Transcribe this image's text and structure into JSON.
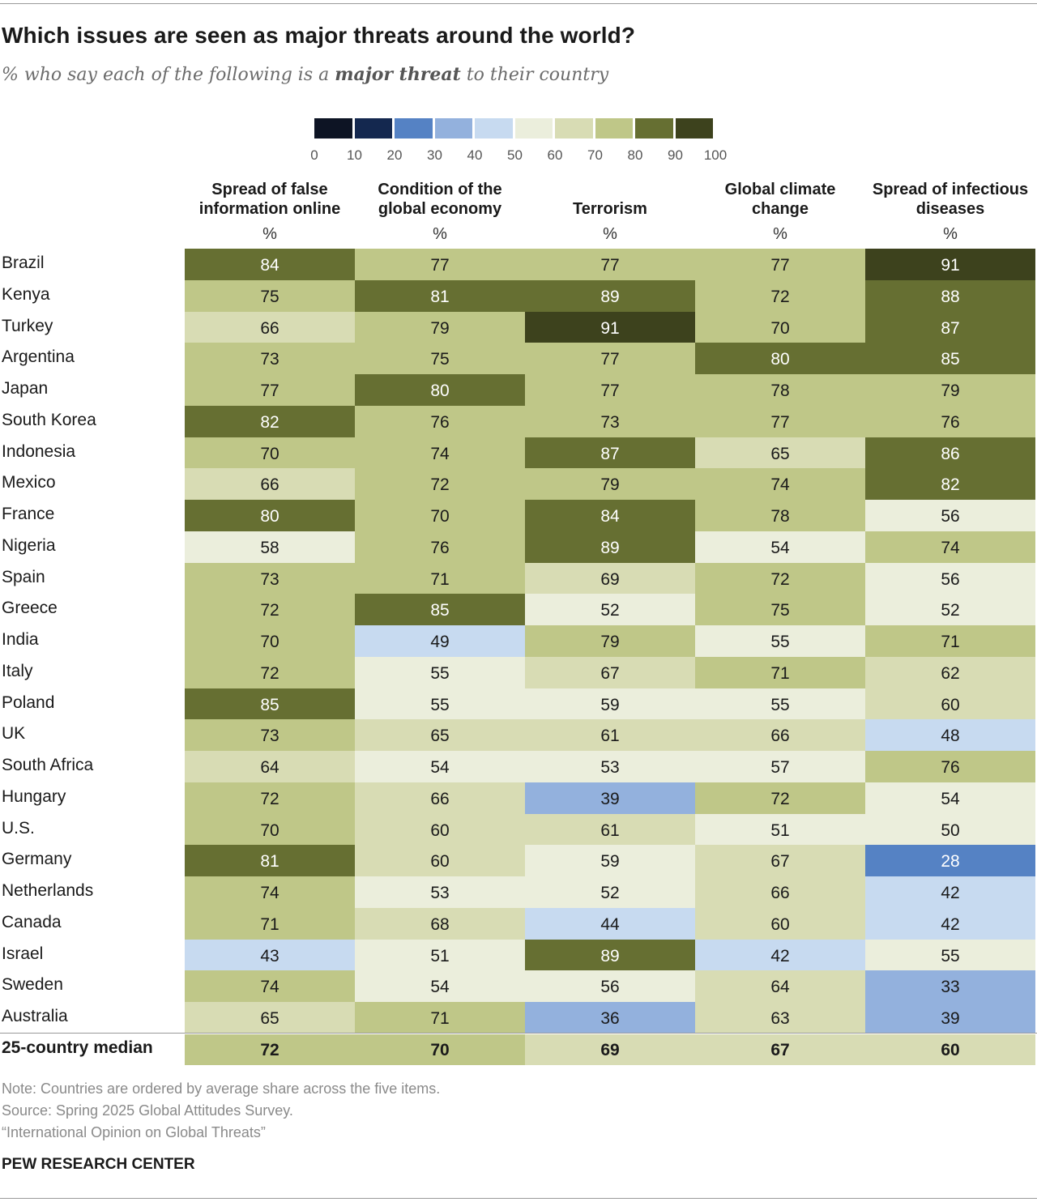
{
  "chart_data": {
    "type": "heatmap",
    "title": "Which issues are seen as major threats around the world?",
    "subtitle_parts": [
      "% who say each of the following is a ",
      "major threat",
      " to their country"
    ],
    "columns": [
      "Spread of false information online",
      "Condition of the global economy",
      "Terrorism",
      "Global climate change",
      "Spread of infectious diseases"
    ],
    "column_unit": "%",
    "rows": [
      {
        "label": "Brazil",
        "values": [
          84,
          77,
          77,
          77,
          91
        ]
      },
      {
        "label": "Kenya",
        "values": [
          75,
          81,
          89,
          72,
          88
        ]
      },
      {
        "label": "Turkey",
        "values": [
          66,
          79,
          91,
          70,
          87
        ]
      },
      {
        "label": "Argentina",
        "values": [
          73,
          75,
          77,
          80,
          85
        ]
      },
      {
        "label": "Japan",
        "values": [
          77,
          80,
          77,
          78,
          79
        ]
      },
      {
        "label": "South Korea",
        "values": [
          82,
          76,
          73,
          77,
          76
        ]
      },
      {
        "label": "Indonesia",
        "values": [
          70,
          74,
          87,
          65,
          86
        ]
      },
      {
        "label": "Mexico",
        "values": [
          66,
          72,
          79,
          74,
          82
        ]
      },
      {
        "label": "France",
        "values": [
          80,
          70,
          84,
          78,
          56
        ]
      },
      {
        "label": "Nigeria",
        "values": [
          58,
          76,
          89,
          54,
          74
        ]
      },
      {
        "label": "Spain",
        "values": [
          73,
          71,
          69,
          72,
          56
        ]
      },
      {
        "label": "Greece",
        "values": [
          72,
          85,
          52,
          75,
          52
        ]
      },
      {
        "label": "India",
        "values": [
          70,
          49,
          79,
          55,
          71
        ]
      },
      {
        "label": "Italy",
        "values": [
          72,
          55,
          67,
          71,
          62
        ]
      },
      {
        "label": "Poland",
        "values": [
          85,
          55,
          59,
          55,
          60
        ]
      },
      {
        "label": "UK",
        "values": [
          73,
          65,
          61,
          66,
          48
        ]
      },
      {
        "label": "South Africa",
        "values": [
          64,
          54,
          53,
          57,
          76
        ]
      },
      {
        "label": "Hungary",
        "values": [
          72,
          66,
          39,
          72,
          54
        ]
      },
      {
        "label": "U.S.",
        "values": [
          70,
          60,
          61,
          51,
          50
        ]
      },
      {
        "label": "Germany",
        "values": [
          81,
          60,
          59,
          67,
          28
        ]
      },
      {
        "label": "Netherlands",
        "values": [
          74,
          53,
          52,
          66,
          42
        ]
      },
      {
        "label": "Canada",
        "values": [
          71,
          68,
          44,
          60,
          42
        ]
      },
      {
        "label": "Israel",
        "values": [
          43,
          51,
          89,
          42,
          55
        ]
      },
      {
        "label": "Sweden",
        "values": [
          74,
          54,
          56,
          64,
          33
        ]
      },
      {
        "label": "Australia",
        "values": [
          65,
          71,
          36,
          63,
          39
        ]
      }
    ],
    "median": {
      "label": "25-country median",
      "values": [
        72,
        70,
        69,
        67,
        60
      ]
    },
    "legend": {
      "ticks": [
        "0",
        "10",
        "20",
        "30",
        "40",
        "50",
        "60",
        "70",
        "80",
        "90",
        "100"
      ],
      "colors": [
        "#0d1424",
        "#14284f",
        "#5582c4",
        "#93b1dd",
        "#c7daf0",
        "#ebeedc",
        "#d8dcb4",
        "#bfc788",
        "#666f32",
        "#3d421d"
      ]
    }
  },
  "notes": {
    "note": "Note: Countries are ordered by average share across the five items.",
    "source": "Source: Spring 2025 Global Attitudes Survey.",
    "report": "“International Opinion on Global Threats”",
    "brand": "PEW RESEARCH CENTER"
  }
}
